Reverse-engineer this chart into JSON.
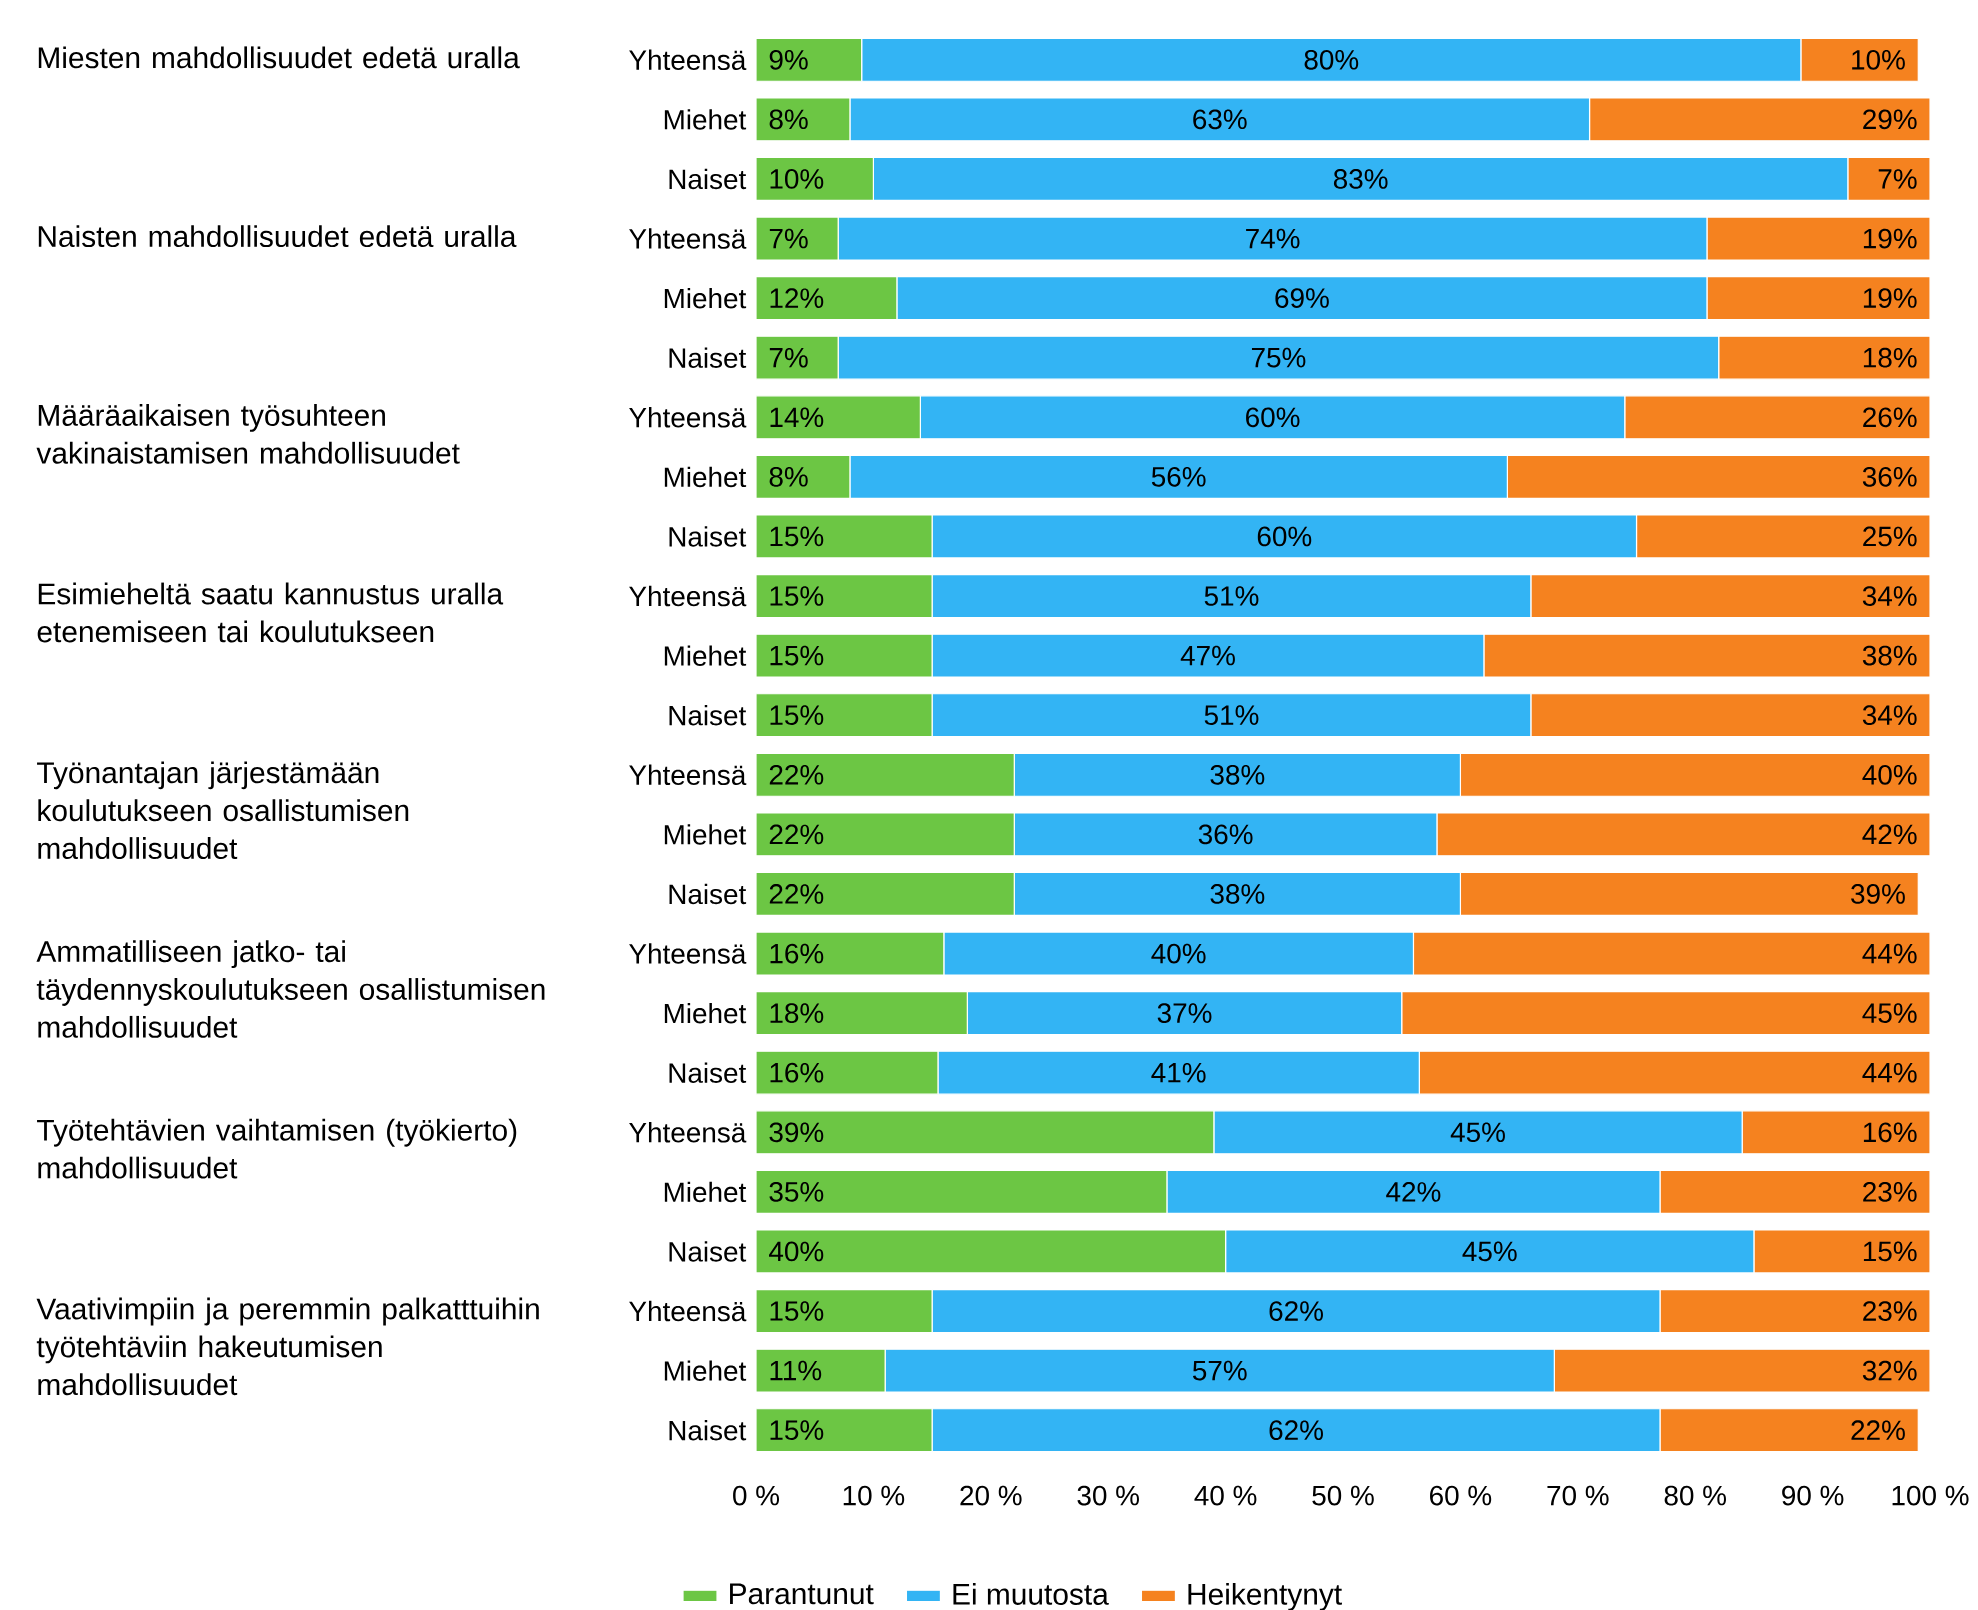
{
  "chart_data": {
    "type": "bar",
    "orientation": "horizontal",
    "stacked": true,
    "categories": [
      "Yhteensä",
      "Miehet",
      "Naiset",
      "Yhteensä",
      "Miehet",
      "Naiset",
      "Yhteensä",
      "Miehet",
      "Naiset",
      "Yhteensä",
      "Miehet",
      "Naiset",
      "Yhteensä",
      "Miehet",
      "Naiset",
      "Yhteensä",
      "Miehet",
      "Naiset",
      "Yhteensä",
      "Miehet",
      "Naiset",
      "Yhteensä",
      "Miehet",
      "Naiset"
    ],
    "annotations": [
      "Miesten mahdollisuudet edetä uralla",
      "Naisten mahdollisuudet edetä uralla",
      "Määräaikaisen työsuhteen vakinaistamisen mahdollisuudet",
      "Esimieheltä saatu kannustus uralla etenemiseen tai koulutukseen",
      "Työnantajan järjestämään koulutukseen osallistumisen mahdollisuudet",
      "Ammatilliseen jatko- tai täydennyskoulutukseen osallistumisen mahdollisuudet",
      "Työtehtävien vaihtamisen (työkierto) mahdollisuudet",
      "Vaativimpiin ja peremmin palkatttuihin työtehtäviin hakeutumisen mahdollisuudet"
    ],
    "series": [
      {
        "name": "Parantunut",
        "color": "#6cc644",
        "values": [
          9,
          8,
          10,
          7,
          12,
          7,
          14,
          8,
          15,
          15,
          15,
          15,
          22,
          22,
          22,
          16,
          18,
          15.5,
          39,
          35,
          40,
          15,
          11,
          15
        ],
        "value_labels": [
          "9%",
          "8%",
          "10%",
          "7%",
          "12%",
          "7%",
          "14%",
          "8%",
          "15%",
          "15%",
          "15%",
          "15%",
          "22%",
          "22%",
          "22%",
          "16%",
          "18%",
          "16%",
          "39%",
          "35%",
          "40%",
          "15%",
          "11%",
          "15%"
        ]
      },
      {
        "name": "Ei muutosta",
        "color": "#33b4f4",
        "values": [
          80,
          63,
          83,
          74,
          69,
          75,
          60,
          56,
          60,
          51,
          47,
          51,
          38,
          36,
          38,
          40,
          37,
          41,
          45,
          42,
          45,
          62,
          57,
          62
        ],
        "value_labels": [
          "80%",
          "63%",
          "83%",
          "74%",
          "69%",
          "75%",
          "60%",
          "56%",
          "60%",
          "51%",
          "47%",
          "51%",
          "38%",
          "36%",
          "38%",
          "40%",
          "37%",
          "41%",
          "45%",
          "42%",
          "45%",
          "62%",
          "57%",
          "62%"
        ]
      },
      {
        "name": "Heikentynyt",
        "color": "#f5821f",
        "values": [
          10,
          29,
          7,
          19,
          19,
          18,
          26,
          36,
          25,
          34,
          38,
          34,
          40,
          42,
          39,
          44,
          45,
          43.5,
          16,
          23,
          15,
          23,
          32,
          22
        ],
        "value_labels": [
          "10%",
          "29%",
          "7%",
          "19%",
          "19%",
          "18%",
          "26%",
          "36%",
          "25%",
          "34%",
          "38%",
          "34%",
          "40%",
          "42%",
          "39%",
          "44%",
          "45%",
          "44%",
          "16%",
          "23%",
          "15%",
          "23%",
          "32%",
          "22%"
        ]
      }
    ],
    "xlim": [
      0,
      100
    ],
    "xticks": [
      {
        "value": 0,
        "label": "0 %"
      },
      {
        "value": 10,
        "label": "10 %"
      },
      {
        "value": 20,
        "label": "20 %"
      },
      {
        "value": 30,
        "label": "30 %"
      },
      {
        "value": 40,
        "label": "40 %"
      },
      {
        "value": 50,
        "label": "50 %"
      },
      {
        "value": 60,
        "label": "60 %"
      },
      {
        "value": 70,
        "label": "70 %"
      },
      {
        "value": 80,
        "label": "80 %"
      },
      {
        "value": 90,
        "label": "90 %"
      },
      {
        "value": 100,
        "label": "100 %"
      }
    ],
    "legend": "bottom"
  }
}
